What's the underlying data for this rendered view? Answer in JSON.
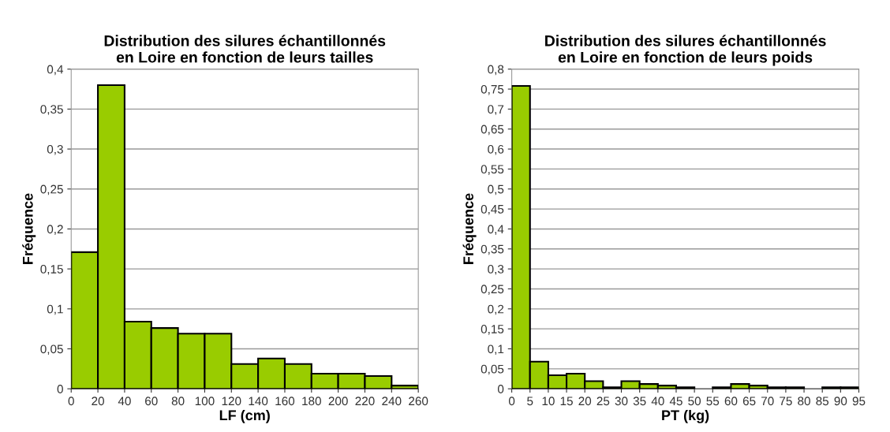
{
  "chart_data": [
    {
      "type": "histogram",
      "title": "Distribution des silures échantillonnés\nen Loire en fonction de leurs tailles",
      "xlabel": "LF (cm)",
      "ylabel": "Fréquence",
      "color": "#99cc00",
      "grid": "y",
      "bins": [
        0,
        20,
        40,
        60,
        80,
        100,
        120,
        140,
        160,
        180,
        200,
        220,
        240,
        260
      ],
      "values": [
        0.171,
        0.38,
        0.084,
        0.076,
        0.069,
        0.069,
        0.031,
        0.038,
        0.031,
        0.019,
        0.019,
        0.016,
        0.004
      ],
      "xlim": [
        0,
        260
      ],
      "xticks": [
        0,
        20,
        40,
        60,
        80,
        100,
        120,
        140,
        160,
        180,
        200,
        220,
        240,
        260
      ],
      "ylim": [
        0,
        0.4
      ],
      "yticks": [
        0,
        {
          "value": 0.05,
          "label": "0,05"
        },
        {
          "value": 0.1,
          "label": "0,1"
        },
        {
          "value": 0.15,
          "label": "0,15"
        },
        {
          "value": 0.2,
          "label": "0,2"
        },
        {
          "value": 0.25,
          "label": "0,25"
        },
        {
          "value": 0.3,
          "label": "0,3"
        },
        {
          "value": 0.35,
          "label": "0,35"
        },
        {
          "value": 0.4,
          "label": "0,4"
        }
      ]
    },
    {
      "type": "histogram",
      "title": "Distribution des silures échantillonnés\nen Loire en fonction de leurs poids",
      "xlabel": "PT (kg)",
      "ylabel": "Fréquence",
      "color": "#99cc00",
      "grid": "y",
      "bins": [
        0,
        5,
        10,
        15,
        20,
        25,
        30,
        35,
        40,
        45,
        50,
        55,
        60,
        65,
        70,
        75,
        80,
        85,
        90,
        95
      ],
      "values": [
        0.758,
        0.068,
        0.034,
        0.038,
        0.019,
        0.004,
        0.019,
        0.012,
        0.008,
        0.004,
        0,
        0.004,
        0.012,
        0.008,
        0.004,
        0.004,
        0,
        0.004,
        0.004
      ],
      "xlim": [
        0,
        95
      ],
      "xticks": [
        0,
        5,
        10,
        15,
        20,
        25,
        30,
        35,
        40,
        45,
        50,
        55,
        60,
        65,
        70,
        75,
        80,
        85,
        90,
        95
      ],
      "ylim": [
        0,
        0.8
      ],
      "yticks": [
        0,
        {
          "value": 0.05,
          "label": "0,05"
        },
        {
          "value": 0.1,
          "label": "0,1"
        },
        {
          "value": 0.15,
          "label": "0,15"
        },
        {
          "value": 0.2,
          "label": "0,2"
        },
        {
          "value": 0.25,
          "label": "0,25"
        },
        {
          "value": 0.3,
          "label": "0,3"
        },
        {
          "value": 0.35,
          "label": "0,35"
        },
        {
          "value": 0.4,
          "label": "0,4"
        },
        {
          "value": 0.45,
          "label": "0,45"
        },
        {
          "value": 0.5,
          "label": "0,5"
        },
        {
          "value": 0.55,
          "label": "0,55"
        },
        {
          "value": 0.6,
          "label": "0,6"
        },
        {
          "value": 0.65,
          "label": "0,65"
        },
        {
          "value": 0.7,
          "label": "0,7"
        },
        {
          "value": 0.75,
          "label": "0,75"
        },
        {
          "value": 0.8,
          "label": "0,8"
        }
      ]
    }
  ]
}
